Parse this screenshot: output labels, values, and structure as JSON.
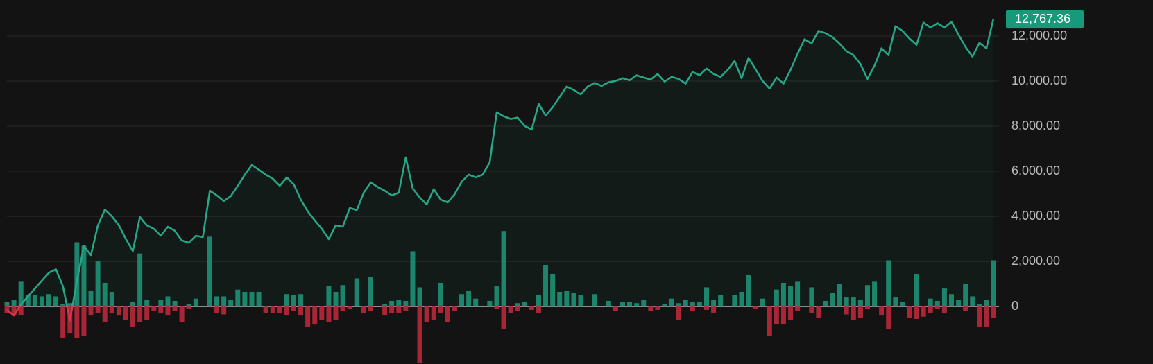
{
  "chart_data": {
    "type": "line",
    "ylim": [
      -2550,
      13600
    ],
    "yticks": [
      {
        "value": 12000,
        "label": "12,000.00"
      },
      {
        "value": 10000,
        "label": "10,000.00"
      },
      {
        "value": 8000,
        "label": "8,000.00"
      },
      {
        "value": 6000,
        "label": "6,000.00"
      },
      {
        "value": 4000,
        "label": "4,000.00"
      },
      {
        "value": 2000,
        "label": "2,000.00"
      },
      0
    ],
    "grid": true,
    "series": [
      {
        "type": "line",
        "color": "#27a685",
        "negative_color": "#e0334a",
        "values": [
          -150,
          -400,
          100,
          450,
          800,
          1150,
          1500,
          1650,
          900,
          -620,
          1140,
          2680,
          2280,
          3600,
          4300,
          4000,
          3600,
          3000,
          2460,
          3970,
          3600,
          3450,
          3140,
          3540,
          3360,
          2930,
          2830,
          3140,
          3080,
          5140,
          4930,
          4680,
          4900,
          5360,
          5850,
          6280,
          6070,
          5850,
          5670,
          5360,
          5730,
          5420,
          4740,
          4220,
          3820,
          3450,
          2990,
          3600,
          3540,
          4370,
          4280,
          5050,
          5510,
          5300,
          5140,
          4930,
          5050,
          6620,
          5240,
          4840,
          4530,
          5210,
          4740,
          4620,
          4990,
          5540,
          5850,
          5730,
          5850,
          6400,
          8620,
          8440,
          8320,
          8380,
          8010,
          7850,
          8990,
          8470,
          8840,
          9300,
          9760,
          9610,
          9420,
          9760,
          9920,
          9790,
          9950,
          10010,
          10130,
          10040,
          10260,
          10160,
          10070,
          10320,
          9980,
          10190,
          10100,
          9890,
          10410,
          10260,
          10560,
          10320,
          10190,
          10500,
          10900,
          10130,
          11030,
          10530,
          10010,
          9670,
          10160,
          9890,
          10500,
          11210,
          11860,
          11670,
          12230,
          12130,
          11950,
          11670,
          11330,
          11150,
          10750,
          10100,
          10690,
          11460,
          11150,
          12440,
          12230,
          11890,
          11610,
          12600,
          12380,
          12570,
          12380,
          12630,
          12070,
          11520,
          11090,
          11700,
          11460,
          12767.36
        ],
        "value_labels": {
          "141": "12,767.36"
        }
      },
      {
        "type": "bar",
        "color": "#1d836b",
        "values": [
          200,
          300,
          1100,
          500,
          500,
          450,
          550,
          450,
          100,
          150,
          2850,
          2700,
          700,
          2000,
          1050,
          650,
          0,
          0,
          200,
          2350,
          300,
          0,
          300,
          450,
          250,
          0,
          100,
          350,
          0,
          3100,
          450,
          450,
          300,
          750,
          650,
          650,
          650,
          0,
          0,
          0,
          550,
          500,
          550,
          0,
          0,
          0,
          900,
          650,
          950,
          0,
          1250,
          0,
          1300,
          0,
          100,
          250,
          300,
          250,
          2450,
          850,
          0,
          0,
          1050,
          0,
          0,
          550,
          700,
          350,
          0,
          250,
          900,
          3350,
          0,
          150,
          200,
          0,
          500,
          1850,
          1450,
          650,
          700,
          600,
          500,
          0,
          550,
          0,
          250,
          0,
          200,
          200,
          150,
          300,
          0,
          0,
          100,
          350,
          150,
          300,
          200,
          200,
          850,
          300,
          500,
          0,
          500,
          650,
          1400,
          0,
          350,
          0,
          750,
          1050,
          900,
          1100,
          0,
          850,
          0,
          250,
          600,
          1000,
          400,
          400,
          300,
          950,
          1100,
          0,
          2050,
          400,
          200,
          0,
          1450,
          0,
          350,
          250,
          800,
          550,
          300,
          1000,
          450,
          100,
          300,
          2050
        ]
      },
      {
        "type": "bar",
        "color": "#a92637",
        "values": [
          -300,
          -400,
          -400,
          0,
          0,
          0,
          0,
          0,
          -1400,
          -1200,
          -1400,
          -1300,
          -400,
          -300,
          -700,
          -300,
          -400,
          -600,
          -900,
          -700,
          -600,
          -200,
          -300,
          -400,
          -200,
          -700,
          -100,
          0,
          0,
          0,
          -300,
          -350,
          0,
          0,
          0,
          0,
          0,
          -300,
          -300,
          -300,
          -400,
          -200,
          -400,
          -900,
          -800,
          -600,
          -700,
          -600,
          -200,
          -100,
          0,
          -300,
          -200,
          0,
          -400,
          -300,
          -300,
          -200,
          0,
          -2500,
          -700,
          -600,
          -300,
          -700,
          -200,
          0,
          0,
          0,
          0,
          0,
          -100,
          -1000,
          -300,
          -200,
          0,
          -150,
          -300,
          0,
          0,
          0,
          0,
          0,
          0,
          0,
          0,
          0,
          0,
          -200,
          0,
          0,
          0,
          0,
          -200,
          -150,
          0,
          0,
          -600,
          0,
          -200,
          0,
          -150,
          -300,
          0,
          0,
          0,
          0,
          0,
          -100,
          0,
          -1300,
          -800,
          -800,
          -600,
          -200,
          0,
          -300,
          -500,
          0,
          0,
          0,
          -350,
          -600,
          -500,
          -100,
          0,
          -400,
          -1000,
          0,
          0,
          -500,
          -550,
          -450,
          -300,
          -100,
          -300,
          0,
          0,
          -200,
          0,
          -900,
          -900,
          -500
        ]
      }
    ]
  }
}
